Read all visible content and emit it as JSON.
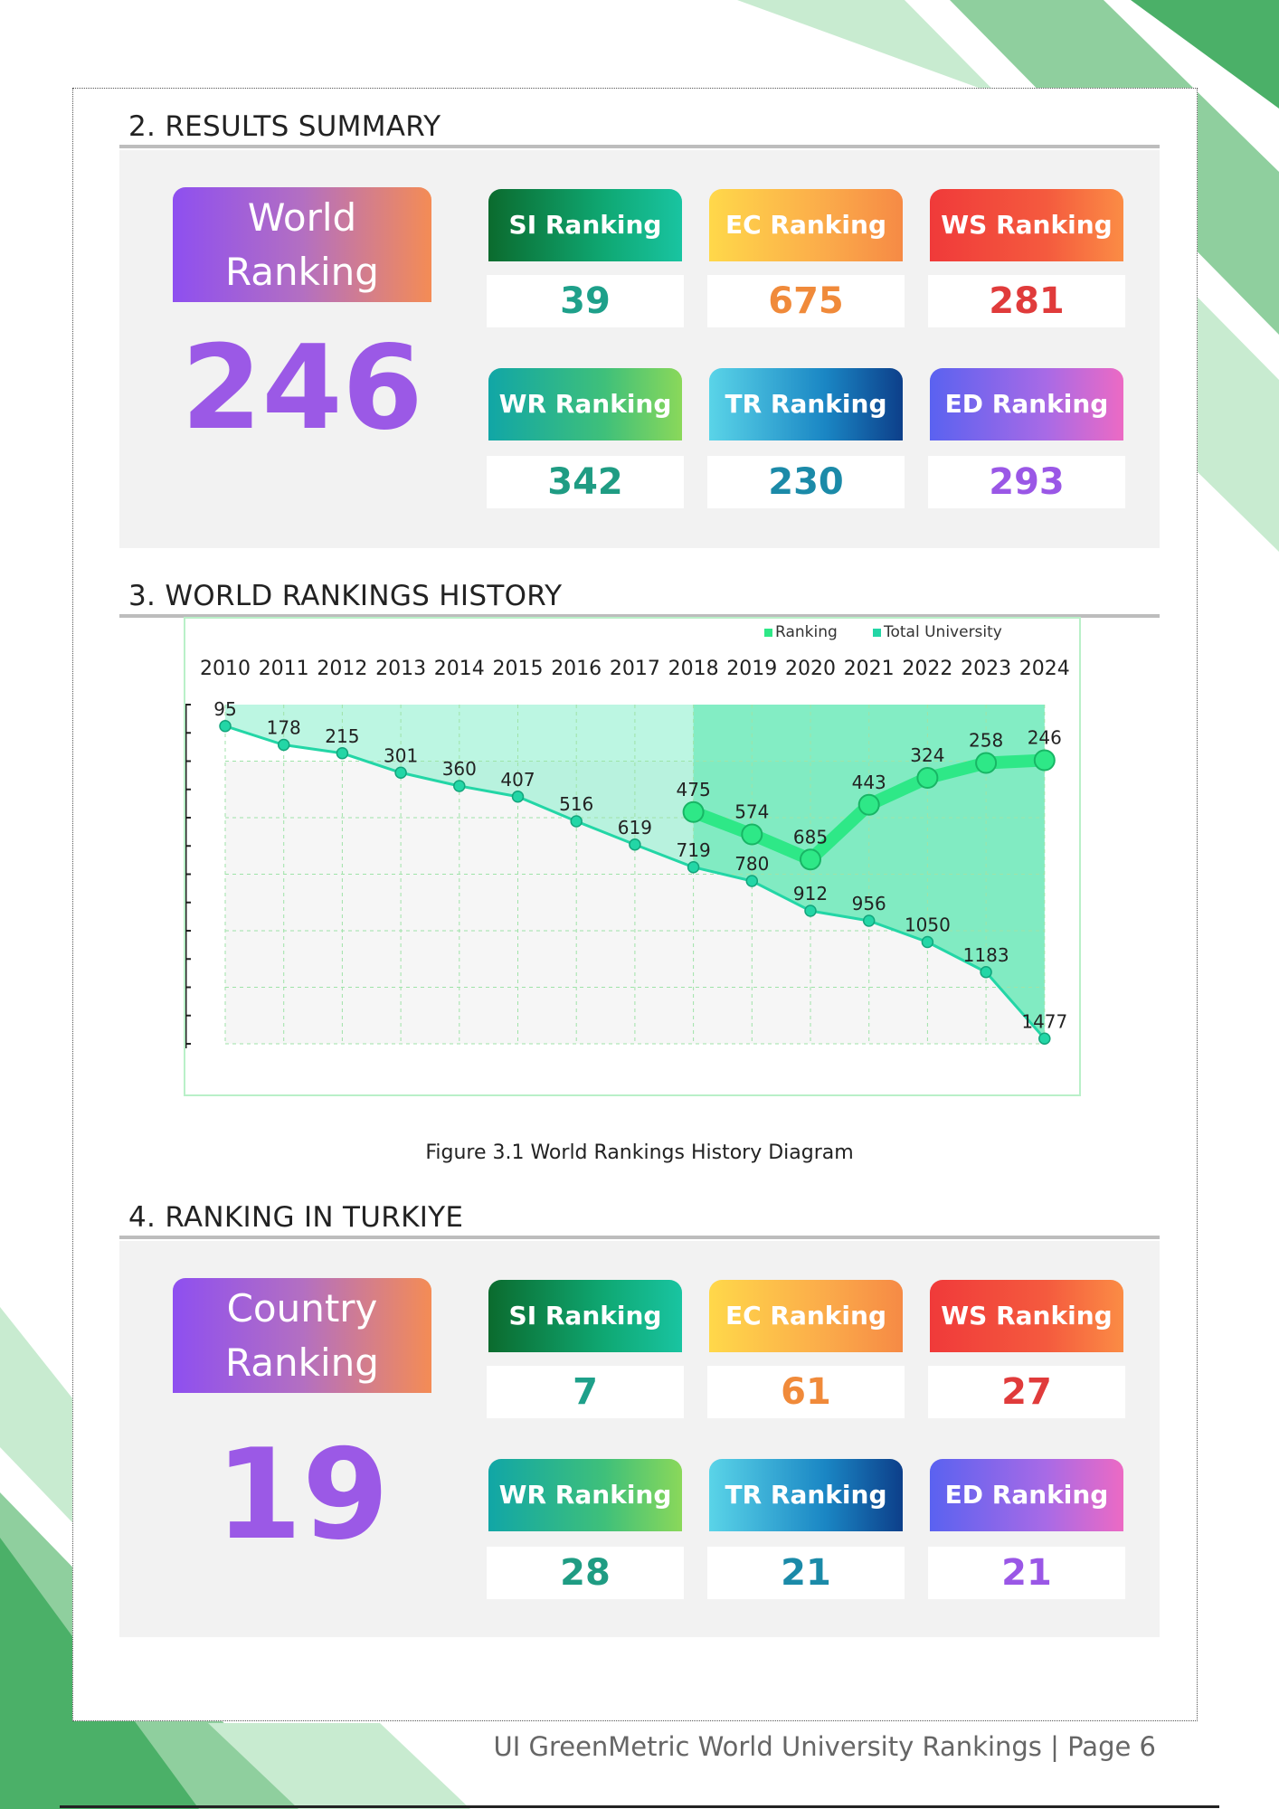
{
  "results": {
    "title": "2. RESULTS SUMMARY",
    "big_label_1": "World",
    "big_label_2": "Ranking",
    "big_value": "246",
    "cards": [
      {
        "label": "SI Ranking",
        "value": "39"
      },
      {
        "label": "EC Ranking",
        "value": "675"
      },
      {
        "label": "WS Ranking",
        "value": "281"
      },
      {
        "label": "WR Ranking",
        "value": "342"
      },
      {
        "label": "TR Ranking",
        "value": "230"
      },
      {
        "label": "ED Ranking",
        "value": "293"
      }
    ]
  },
  "history": {
    "title": "3. WORLD RANKINGS HISTORY",
    "caption": "Figure 3.1 World Rankings History Diagram"
  },
  "chart_data": {
    "type": "line",
    "x": [
      2010,
      2011,
      2012,
      2013,
      2014,
      2015,
      2016,
      2017,
      2018,
      2019,
      2020,
      2021,
      2022,
      2023,
      2024
    ],
    "series": [
      {
        "name": "Ranking",
        "x": [
          2018,
          2019,
          2020,
          2021,
          2022,
          2023,
          2024
        ],
        "values": [
          475,
          574,
          685,
          443,
          324,
          258,
          246
        ],
        "color": "#2ee887"
      },
      {
        "name": "Total University",
        "x": [
          2010,
          2011,
          2012,
          2013,
          2014,
          2015,
          2016,
          2017,
          2018,
          2019,
          2020,
          2021,
          2022,
          2023,
          2024
        ],
        "values": [
          95,
          178,
          215,
          301,
          360,
          407,
          516,
          619,
          719,
          780,
          912,
          956,
          1050,
          1183,
          1477
        ],
        "color": "#23d6a6"
      }
    ],
    "y_inverted": true,
    "ylim": [
      0,
      1500
    ],
    "legend_position": "top-right",
    "x_axis_position": "top",
    "grid": true
  },
  "turkiye": {
    "title": "4. RANKING IN TURKIYE",
    "big_label_1": "Country",
    "big_label_2": "Ranking",
    "big_value": "19",
    "cards": [
      {
        "label": "SI Ranking",
        "value": "7"
      },
      {
        "label": "EC Ranking",
        "value": "61"
      },
      {
        "label": "WS Ranking",
        "value": "27"
      },
      {
        "label": "WR Ranking",
        "value": "28"
      },
      {
        "label": "TR Ranking",
        "value": "21"
      },
      {
        "label": "ED Ranking",
        "value": "21"
      }
    ]
  },
  "footer": {
    "text": "UI GreenMetric World University Rankings | Page 6"
  },
  "colors": {
    "accent_purple": "#9b59e6",
    "deco_green_light": "#bfe6c8",
    "deco_green_mid": "#8fd0a0",
    "deco_green_dark": "#4cb36a"
  }
}
